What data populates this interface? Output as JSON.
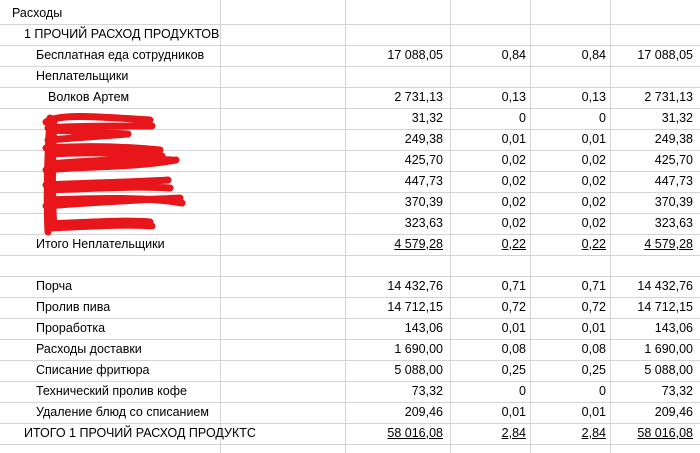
{
  "sheet": {
    "rows": [
      {
        "label": "Расходы",
        "indent": 0,
        "values": [
          "",
          "",
          "",
          ""
        ],
        "underline": false
      },
      {
        "label": "1 ПРОЧИЙ РАСХОД ПРОДУКТОВ",
        "indent": 1,
        "values": [
          "",
          "",
          "",
          ""
        ],
        "underline": false
      },
      {
        "label": "Бесплатная еда сотрудников",
        "indent": 2,
        "values": [
          "17 088,05",
          "0,84",
          "0,84",
          "17 088,05"
        ],
        "underline": false
      },
      {
        "label": "Неплательщики",
        "indent": 2,
        "values": [
          "",
          "",
          "",
          ""
        ],
        "underline": false
      },
      {
        "label": "Волков Артем",
        "indent": 3,
        "values": [
          "2 731,13",
          "0,13",
          "0,13",
          "2 731,13"
        ],
        "underline": false
      },
      {
        "label": "",
        "indent": 3,
        "values": [
          "31,32",
          "0",
          "0",
          "31,32"
        ],
        "underline": false
      },
      {
        "label": "",
        "indent": 3,
        "values": [
          "249,38",
          "0,01",
          "0,01",
          "249,38"
        ],
        "underline": false
      },
      {
        "label": "",
        "indent": 3,
        "values": [
          "425,70",
          "0,02",
          "0,02",
          "425,70"
        ],
        "underline": false
      },
      {
        "label": "",
        "indent": 3,
        "values": [
          "447,73",
          "0,02",
          "0,02",
          "447,73"
        ],
        "underline": false
      },
      {
        "label": "",
        "indent": 3,
        "values": [
          "370,39",
          "0,02",
          "0,02",
          "370,39"
        ],
        "underline": false
      },
      {
        "label": "",
        "indent": 3,
        "values": [
          "323,63",
          "0,02",
          "0,02",
          "323,63"
        ],
        "underline": false
      },
      {
        "label": "Итого Неплательщики",
        "indent": 2,
        "values": [
          "4 579,28",
          "0,22",
          "0,22",
          "4 579,28"
        ],
        "underline": true
      },
      {
        "label": "",
        "indent": 0,
        "values": [
          "",
          "",
          "",
          ""
        ],
        "underline": false
      },
      {
        "label": "Порча",
        "indent": 2,
        "values": [
          "14 432,76",
          "0,71",
          "0,71",
          "14 432,76"
        ],
        "underline": false
      },
      {
        "label": "Пролив пива",
        "indent": 2,
        "values": [
          "14 712,15",
          "0,72",
          "0,72",
          "14 712,15"
        ],
        "underline": false
      },
      {
        "label": "Проработка",
        "indent": 2,
        "values": [
          "143,06",
          "0,01",
          "0,01",
          "143,06"
        ],
        "underline": false
      },
      {
        "label": "Расходы доставки",
        "indent": 2,
        "values": [
          "1 690,00",
          "0,08",
          "0,08",
          "1 690,00"
        ],
        "underline": false
      },
      {
        "label": "Списание фритюра",
        "indent": 2,
        "values": [
          "5 088,00",
          "0,25",
          "0,25",
          "5 088,00"
        ],
        "underline": false
      },
      {
        "label": "Технический пролив кофе",
        "indent": 2,
        "values": [
          "73,32",
          "0",
          "0",
          "73,32"
        ],
        "underline": false
      },
      {
        "label": "Удаление блюд со списанием",
        "indent": 2,
        "values": [
          "209,46",
          "0,01",
          "0,01",
          "209,46"
        ],
        "underline": false
      },
      {
        "label": "ИТОГО 1 ПРОЧИЙ РАСХОД ПРОДУКТС",
        "indent": 1,
        "values": [
          "58 016,08",
          "2,84",
          "2,84",
          "58 016,08"
        ],
        "underline": true
      }
    ]
  },
  "redaction_color": "#e8151b"
}
